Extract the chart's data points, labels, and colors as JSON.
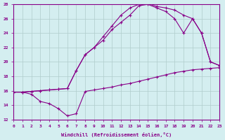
{
  "xlabel": "Windchill (Refroidissement éolien,°C)",
  "xlim": [
    0,
    23
  ],
  "ylim": [
    12,
    28
  ],
  "xticks": [
    0,
    1,
    2,
    3,
    4,
    5,
    6,
    7,
    8,
    9,
    10,
    11,
    12,
    13,
    14,
    15,
    16,
    17,
    18,
    19,
    20,
    21,
    22,
    23
  ],
  "yticks": [
    12,
    14,
    16,
    18,
    20,
    22,
    24,
    26,
    28
  ],
  "bg_color": "#d4eef0",
  "grid_color": "#b0cccc",
  "line_color": "#880088",
  "line1_x": [
    0,
    1,
    2,
    3,
    4,
    5,
    6,
    7,
    8,
    9,
    10,
    11,
    12,
    13,
    14,
    15,
    16,
    17,
    18,
    19,
    20,
    21,
    22,
    23
  ],
  "line1_y": [
    15.8,
    15.8,
    15.5,
    14.5,
    14.2,
    13.5,
    12.5,
    12.8,
    15.9,
    16.1,
    16.3,
    16.5,
    16.8,
    17.0,
    17.3,
    17.6,
    17.9,
    18.2,
    18.5,
    18.7,
    18.9,
    19.0,
    19.1,
    19.2
  ],
  "line2_x": [
    0,
    1,
    2,
    3,
    4,
    5,
    6,
    7,
    8,
    9,
    10,
    11,
    12,
    13,
    14,
    15,
    16,
    17,
    18,
    19,
    20,
    21,
    22,
    23
  ],
  "line2_y": [
    15.8,
    15.8,
    15.9,
    16.0,
    16.1,
    16.2,
    16.3,
    18.8,
    21.0,
    22.0,
    23.0,
    24.5,
    25.5,
    26.5,
    27.8,
    28.0,
    27.5,
    27.0,
    26.0,
    24.0,
    26.0,
    24.0,
    20.0,
    19.5
  ],
  "line3_x": [
    0,
    1,
    2,
    3,
    4,
    5,
    6,
    7,
    8,
    9,
    10,
    11,
    12,
    13,
    14,
    15,
    16,
    17,
    18,
    19,
    20,
    21,
    22,
    23
  ],
  "line3_y": [
    15.8,
    15.8,
    15.9,
    16.0,
    16.1,
    16.2,
    16.3,
    18.8,
    21.0,
    22.0,
    23.5,
    25.0,
    26.5,
    27.5,
    28.0,
    28.1,
    27.7,
    27.5,
    27.2,
    26.5,
    26.0,
    24.0,
    20.0,
    19.5
  ]
}
